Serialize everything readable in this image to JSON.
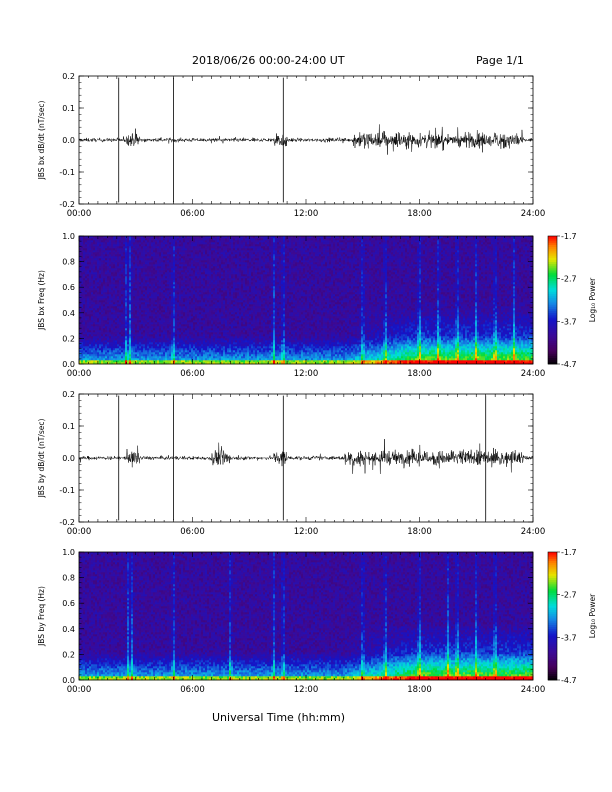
{
  "header": {
    "title": "2018/06/26  00:00-24:00 UT",
    "page": "Page 1/1"
  },
  "xaxis": {
    "label": "Universal Time (hh:mm)",
    "ticks": [
      "00:00",
      "06:00",
      "12:00",
      "18:00",
      "24:00"
    ],
    "tick_hours": [
      0,
      6,
      12,
      18,
      24
    ],
    "range_hours": [
      0,
      24
    ]
  },
  "colorbar": {
    "label": "Log₁₀ Power",
    "ticks": [
      "-1.7",
      "-2.7",
      "-3.7",
      "-4.7"
    ],
    "tick_values": [
      -1.7,
      -2.7,
      -3.7,
      -4.7
    ],
    "range": [
      -4.7,
      -1.7
    ],
    "colormap": "rainbow (black-purple-blue-cyan-green-yellow-red)"
  },
  "colors": {
    "trace": "#000000",
    "background": "#ffffff"
  },
  "chart_data": [
    {
      "type": "line",
      "ylabel": "JBS bx dB/dt (nT/sec)",
      "ylim": [
        -0.2,
        0.2
      ],
      "yticks": [
        "0.2",
        "0.1",
        "0.0",
        "-0.1",
        "-0.2"
      ],
      "ytick_values": [
        0.2,
        0.1,
        0.0,
        -0.1,
        -0.2
      ],
      "spikes_hours": [
        2.1,
        5.0,
        10.8
      ],
      "active_intervals_hours": [
        [
          2.5,
          3.2
        ],
        [
          10.3,
          11.0
        ],
        [
          14.5,
          23.5
        ]
      ]
    },
    {
      "type": "heatmap",
      "ylabel": "JBS bx Freq (Hz)",
      "ylim": [
        0.0,
        1.0
      ],
      "yticks": [
        "1.0",
        "0.8",
        "0.6",
        "0.4",
        "0.2",
        "0.0"
      ],
      "ytick_values": [
        1.0,
        0.8,
        0.6,
        0.4,
        0.2,
        0.0
      ],
      "zlim": [
        -4.7,
        -1.7
      ],
      "bright_columns_hours": [
        2.5,
        2.7,
        5.0,
        10.3,
        10.8,
        15.0,
        16.2,
        18.0,
        19.0,
        20.0,
        21.0,
        22.0,
        23.0
      ]
    },
    {
      "type": "line",
      "ylabel": "JBS by dB/dt (nT/sec)",
      "ylim": [
        -0.2,
        0.2
      ],
      "yticks": [
        "0.2",
        "0.1",
        "0.0",
        "-0.1",
        "-0.2"
      ],
      "ytick_values": [
        0.2,
        0.1,
        0.0,
        -0.1,
        -0.2
      ],
      "spikes_hours": [
        2.1,
        5.0,
        10.8,
        21.5
      ],
      "active_intervals_hours": [
        [
          2.5,
          3.2
        ],
        [
          7.0,
          8.0
        ],
        [
          10.3,
          11.0
        ],
        [
          14.0,
          23.5
        ]
      ]
    },
    {
      "type": "heatmap",
      "ylabel": "JBS by Freq (Hz)",
      "ylim": [
        0.0,
        1.0
      ],
      "yticks": [
        "1.0",
        "0.8",
        "0.6",
        "0.4",
        "0.2",
        "0.0"
      ],
      "ytick_values": [
        1.0,
        0.8,
        0.6,
        0.4,
        0.2,
        0.0
      ],
      "zlim": [
        -4.7,
        -1.7
      ],
      "bright_columns_hours": [
        2.6,
        2.8,
        5.0,
        8.0,
        10.3,
        10.8,
        15.0,
        16.2,
        18.0,
        19.5,
        20.0,
        21.0,
        22.0
      ]
    }
  ]
}
